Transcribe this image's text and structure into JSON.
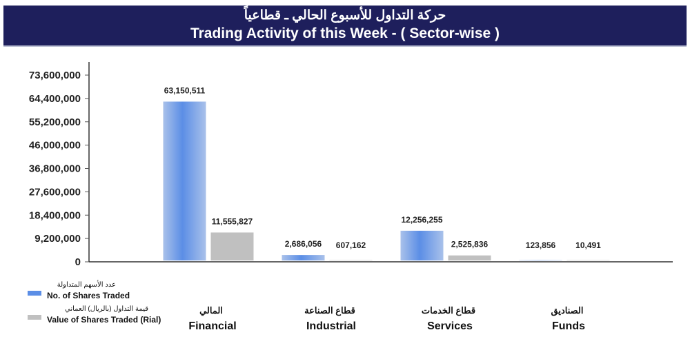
{
  "header": {
    "title_ar": "حركة التداول للأسبوع الحالي ـ قطاعياً",
    "title_en": "Trading Activity of this Week - ( Sector-wise )"
  },
  "chart_data": {
    "type": "bar",
    "title": "Trading Activity of this Week - ( Sector-wise )",
    "categories": [
      "Financial",
      "Industrial",
      "Services",
      "Funds"
    ],
    "categories_ar": [
      "المالي",
      "قطاع الصناعة",
      "قطاع الخدمات",
      "الصناديق"
    ],
    "series": [
      {
        "name": "No. of Shares Traded",
        "name_ar": "عدد الأسهم المتداولة",
        "color": "#5b8ee6",
        "values": [
          63150511,
          2686056,
          12256255,
          123856
        ]
      },
      {
        "name": "Value of Shares Traded (Rial)",
        "name_ar": "قيمة التداول (بالريال) العماني",
        "color": "#c0c0c0",
        "values": [
          11555827,
          607162,
          2525836,
          10491
        ]
      }
    ],
    "data_labels": [
      [
        "63,150,511",
        "2,686,056",
        "12,256,255",
        "123,856"
      ],
      [
        "11,555,827",
        "607,162",
        "2,525,836",
        "10,491"
      ]
    ],
    "yticks": [
      "0",
      "9,200,000",
      "18,400,000",
      "27,600,000",
      "36,800,000",
      "46,000,000",
      "55,200,000",
      "64,400,000",
      "73,600,000"
    ],
    "ylim": [
      0,
      73600000
    ],
    "legend": "bottom-left",
    "grid": false
  }
}
